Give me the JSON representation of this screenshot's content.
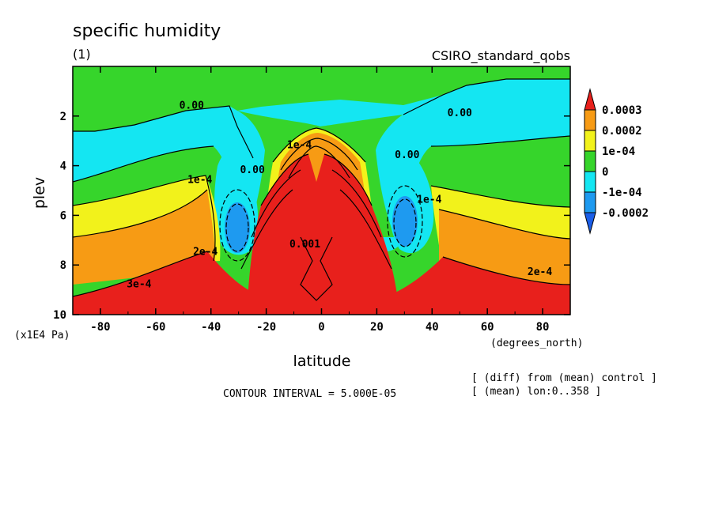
{
  "chart_data": {
    "type": "heatmap",
    "title": "specific humidity",
    "subtitle_left": "(1)",
    "subtitle_right": "CSIRO_standard_qobs",
    "xlabel": "latitude",
    "x_units": "(degrees_north)",
    "ylabel": "plev",
    "y_units": "(x1E4 Pa)",
    "xlim": [
      -90,
      90
    ],
    "ylim": [
      10,
      0
    ],
    "x_ticks": [
      -80,
      -60,
      -40,
      -20,
      0,
      20,
      40,
      60,
      80
    ],
    "y_ticks": [
      2,
      4,
      6,
      8,
      10
    ],
    "contour_interval_text": "CONTOUR INTERVAL = 5.000E-05",
    "notes": [
      "[ (diff) from (mean) control ]",
      "[ (mean) lon:0..358 ]"
    ],
    "legend": {
      "labels": [
        "0.0003",
        "0.0002",
        "1e-04",
        "0",
        "-1e-04",
        "-0.0002"
      ],
      "colors": [
        "#e8201c",
        "#f79b14",
        "#f2f21b",
        "#36d52b",
        "#14e6f2",
        "#1e9af0",
        "#1b5ee8"
      ]
    },
    "contour_labels": [
      {
        "text": "0.00",
        "x": -47,
        "y": 1.7
      },
      {
        "text": "0.00",
        "x": 50,
        "y": 2.0
      },
      {
        "text": "1e-4",
        "x": -44,
        "y": 4.7
      },
      {
        "text": "0.00",
        "x": -25,
        "y": 4.3
      },
      {
        "text": "1e-4",
        "x": -8,
        "y": 3.3
      },
      {
        "text": "0.00",
        "x": 31,
        "y": 3.7
      },
      {
        "text": "1e-4",
        "x": 39,
        "y": 5.5
      },
      {
        "text": "2e-4",
        "x": -42,
        "y": 7.6
      },
      {
        "text": "3e-4",
        "x": -66,
        "y": 8.9
      },
      {
        "text": "2e-4",
        "x": 79,
        "y": 8.4
      },
      {
        "text": "0.001",
        "x": -6,
        "y": 7.3
      }
    ]
  }
}
